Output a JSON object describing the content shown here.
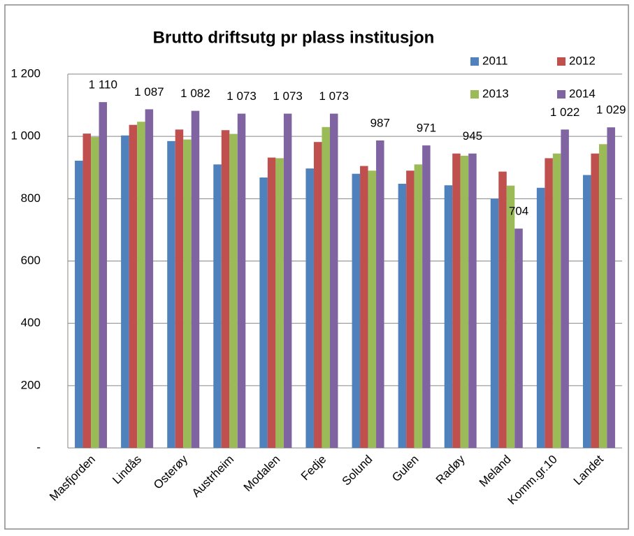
{
  "chart_data": {
    "type": "bar",
    "title": "Brutto driftsutg pr plass institusjon",
    "categories": [
      "Masfjorden",
      "Lindås",
      "Osterøy",
      "Austrheim",
      "Modalen",
      "Fedje",
      "Solund",
      "Gulen",
      "Radøy",
      "Meland",
      "Komm.gr.10",
      "Landet"
    ],
    "series": [
      {
        "name": "2011",
        "color": "#4f81bd",
        "values": [
          922,
          1003,
          985,
          910,
          868,
          897,
          880,
          848,
          843,
          800,
          835,
          876
        ]
      },
      {
        "name": "2012",
        "color": "#c0504d",
        "values": [
          1009,
          1037,
          1022,
          1020,
          932,
          982,
          905,
          890,
          945,
          887,
          930,
          945
        ]
      },
      {
        "name": "2013",
        "color": "#9bbb59",
        "values": [
          998,
          1047,
          990,
          1008,
          930,
          1030,
          890,
          910,
          938,
          842,
          945,
          975
        ]
      },
      {
        "name": "2014",
        "color": "#8064a2",
        "values": [
          1110,
          1087,
          1082,
          1073,
          1073,
          1073,
          987,
          971,
          945,
          704,
          1022,
          1029
        ],
        "value_labels": [
          "1 110",
          "1 087",
          "1 082",
          "1 073",
          "1 073",
          "1 073",
          "987",
          "971",
          "945",
          "704",
          "1 022",
          "1 029"
        ]
      }
    ],
    "ylim": [
      0,
      1200
    ],
    "yticks": [
      {
        "value": 0,
        "label": "-"
      },
      200,
      400,
      600,
      800,
      {
        "value": 1000,
        "label": "1 000"
      },
      {
        "value": 1200,
        "label": "1 200"
      }
    ],
    "grid": true,
    "legend": "top-right"
  }
}
